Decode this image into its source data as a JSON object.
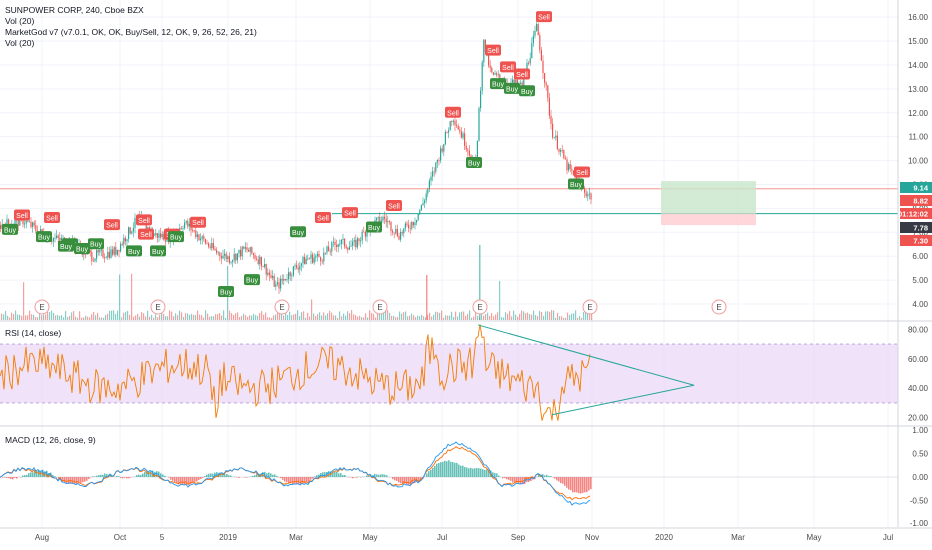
{
  "legends": {
    "main_title": "SUNPOWER CORP, 240, Cboe BZX",
    "vol1": "Vol (20)",
    "indicator": "MarketGod v7 (v7.0.1, OK, OK, Buy/Sell, 12, OK, 9, 26, 52, 26, 21)",
    "vol2": "Vol (20)",
    "rsi": "RSI (14, close)",
    "macd": "MACD (12, 26, close, 9)"
  },
  "price_axis": [
    "16.00",
    "15.00",
    "14.00",
    "13.00",
    "12.00",
    "11.00",
    "10.00",
    "9.00",
    "8.00",
    "7.00",
    "6.00",
    "5.00",
    "4.00"
  ],
  "price_tags": [
    {
      "text": "9.14",
      "color": "#26a69a"
    },
    {
      "text": "8.82",
      "color": "#ef5350"
    },
    {
      "text": "01:12:02",
      "color": "#ef5350"
    },
    {
      "text": "7.78",
      "color": "#363a45"
    },
    {
      "text": "7.30",
      "color": "#ef5350"
    }
  ],
  "rsi_axis": [
    "80.00",
    "60.00",
    "40.00",
    "20.00"
  ],
  "macd_axis": [
    "1.00",
    "0.50",
    "0.00",
    "-0.50",
    "-1.00"
  ],
  "time_axis": [
    "Aug",
    "Oct",
    "5",
    "2019",
    "Mar",
    "May",
    "Jul",
    "Sep",
    "Nov",
    "2020",
    "Mar",
    "May",
    "Jul"
  ],
  "earnings_label": "E",
  "signal_labels": {
    "buy": "Buy",
    "sell": "Sell"
  },
  "colors": {
    "up": "#26a69a",
    "down": "#ef5350",
    "rsi_line": "#f57c00",
    "rsi_band": "#e9d5f5",
    "macd_line": "#2196f3",
    "signal_line": "#ff6d00"
  },
  "chart_data": {
    "type": "candlestick",
    "symbol": "SUNPOWER CORP",
    "interval": "240",
    "exchange": "Cboe BZX",
    "ylim_price": [
      4.0,
      16.3
    ],
    "price_path": [
      [
        0,
        7.3
      ],
      [
        3,
        7.5
      ],
      [
        6,
        6.8
      ],
      [
        9,
        6.6
      ],
      [
        12,
        6.0
      ],
      [
        15,
        6.2
      ],
      [
        18,
        7.6
      ],
      [
        20,
        6.9
      ],
      [
        22,
        6.8
      ],
      [
        24,
        7.4
      ],
      [
        26,
        6.8
      ],
      [
        28,
        6.2
      ],
      [
        30,
        5.9
      ],
      [
        32,
        6.3
      ],
      [
        34,
        5.8
      ],
      [
        36,
        4.7
      ],
      [
        38,
        5.4
      ],
      [
        40,
        5.9
      ],
      [
        42,
        6.0
      ],
      [
        44,
        6.6
      ],
      [
        46,
        6.4
      ],
      [
        48,
        7.2
      ],
      [
        50,
        7.6
      ],
      [
        52,
        6.9
      ],
      [
        54,
        7.5
      ],
      [
        55,
        8.1
      ],
      [
        57,
        10.0
      ],
      [
        59,
        11.9
      ],
      [
        61,
        10.5
      ],
      [
        62,
        9.8
      ],
      [
        63,
        15.0
      ],
      [
        64,
        13.6
      ],
      [
        66,
        13.3
      ],
      [
        68,
        13.1
      ],
      [
        70,
        15.6
      ],
      [
        72,
        11.2
      ],
      [
        74,
        9.7
      ],
      [
        76,
        8.8
      ],
      [
        77,
        8.5
      ]
    ],
    "signals": [
      {
        "type": "Sell",
        "price": 7.7
      },
      {
        "type": "Buy",
        "price": 7.1
      },
      {
        "type": "Sell",
        "price": 7.6
      },
      {
        "type": "Buy",
        "price": 6.8
      },
      {
        "type": "Buy",
        "price": 6.5
      },
      {
        "type": "Buy",
        "price": 6.4
      },
      {
        "type": "Sell",
        "price": 7.3
      },
      {
        "type": "Buy",
        "price": 6.3
      },
      {
        "type": "Sell",
        "price": 7.5
      },
      {
        "type": "Sell",
        "price": 6.9
      },
      {
        "type": "Buy",
        "price": 6.5
      },
      {
        "type": "Buy",
        "price": 6.2
      },
      {
        "type": "Buy",
        "price": 4.5
      },
      {
        "type": "Buy",
        "price": 5.0
      },
      {
        "type": "Sell",
        "price": 6.9
      },
      {
        "type": "Buy",
        "price": 6.2
      },
      {
        "type": "Sell",
        "price": 7.4
      },
      {
        "type": "Buy",
        "price": 6.8
      },
      {
        "type": "Sell",
        "price": 7.6
      },
      {
        "type": "Sell",
        "price": 7.8
      },
      {
        "type": "Buy",
        "price": 7.0
      },
      {
        "type": "Sell",
        "price": 8.1
      },
      {
        "type": "Buy",
        "price": 7.2
      },
      {
        "type": "Sell",
        "price": 12.0
      },
      {
        "type": "Buy",
        "price": 9.9
      },
      {
        "type": "Sell",
        "price": 14.6
      },
      {
        "type": "Buy",
        "price": 13.2
      },
      {
        "type": "Sell",
        "price": 13.9
      },
      {
        "type": "Buy",
        "price": 13.0
      },
      {
        "type": "Sell",
        "price": 13.6
      },
      {
        "type": "Buy",
        "price": 12.9
      },
      {
        "type": "Sell",
        "price": 16.0
      },
      {
        "type": "Sell",
        "price": 9.5
      },
      {
        "type": "Buy",
        "price": 9.0
      }
    ],
    "horizontal_lines": [
      8.82,
      7.78
    ],
    "position_box": {
      "target": 9.14,
      "entry": 7.78,
      "stop": 7.3
    },
    "rsi": {
      "ylim": [
        15,
        85
      ],
      "band": [
        30,
        70
      ],
      "triangle": [
        [
          60,
          83
        ],
        [
          88,
          42
        ],
        [
          60,
          22
        ]
      ]
    },
    "macd": {
      "ylim": [
        -1.0,
        1.0
      ]
    }
  }
}
